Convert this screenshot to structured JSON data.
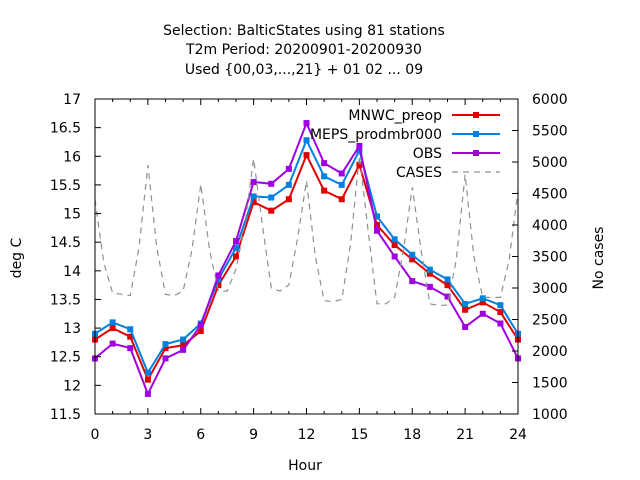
{
  "chart_data": {
    "type": "line",
    "title": [
      "Selection: BalticStates using    81 stations",
      "T2m   Period: 20200901-20200930",
      "Used {00,03,...,21} + 01 02 ... 09"
    ],
    "xlabel": "Hour",
    "ylabel": "deg C",
    "y2label": "No cases",
    "xlim": [
      0,
      24
    ],
    "ylim": [
      11.5,
      17
    ],
    "y2lim": [
      1000,
      6000
    ],
    "xticks": [
      "0",
      "3",
      "6",
      "9",
      "12",
      "15",
      "18",
      "21",
      "24"
    ],
    "yticks": [
      "11.5",
      "12",
      "12.5",
      "13",
      "13.5",
      "14",
      "14.5",
      "15",
      "15.5",
      "16",
      "16.5",
      "17"
    ],
    "y2ticks": [
      "1000",
      "1500",
      "2000",
      "2500",
      "3000",
      "3500",
      "4000",
      "4500",
      "5000",
      "5500",
      "6000"
    ],
    "grid": false,
    "legend_position": "top-right",
    "x": [
      0,
      1,
      2,
      3,
      4,
      5,
      6,
      7,
      8,
      9,
      10,
      11,
      12,
      13,
      14,
      15,
      16,
      17,
      18,
      19,
      20,
      21,
      22,
      23,
      24
    ],
    "series": [
      {
        "name": "MNWC_preop",
        "color": "#e00000",
        "axis": "left",
        "marker": "square",
        "values": [
          12.8,
          13.0,
          12.85,
          12.1,
          12.65,
          12.7,
          12.95,
          13.75,
          14.25,
          15.2,
          15.05,
          15.25,
          16.02,
          15.4,
          15.25,
          15.85,
          14.8,
          14.45,
          14.2,
          13.95,
          13.75,
          13.32,
          13.45,
          13.28,
          12.8
        ]
      },
      {
        "name": "MEPS_prodmbr000",
        "color": "#0080e0",
        "axis": "left",
        "marker": "square",
        "values": [
          12.9,
          13.1,
          12.98,
          12.22,
          12.72,
          12.8,
          13.08,
          13.85,
          14.4,
          15.3,
          15.28,
          15.5,
          16.28,
          15.65,
          15.5,
          16.1,
          14.95,
          14.55,
          14.28,
          14.02,
          13.85,
          13.42,
          13.52,
          13.4,
          12.9
        ]
      },
      {
        "name": "OBS",
        "color": "#a000e0",
        "axis": "left",
        "marker": "square",
        "values": [
          12.47,
          12.73,
          12.65,
          11.85,
          12.47,
          12.62,
          13.05,
          13.92,
          14.52,
          15.55,
          15.52,
          15.78,
          16.58,
          15.88,
          15.7,
          16.18,
          14.7,
          14.25,
          13.82,
          13.72,
          13.55,
          13.02,
          13.25,
          13.08,
          12.47
        ]
      },
      {
        "name": "CASES",
        "color": "#909090",
        "axis": "right",
        "dashed": true,
        "x": [
          0,
          0.5,
          1,
          1.5,
          2,
          2.5,
          3,
          3.5,
          4,
          4.5,
          5,
          5.5,
          6,
          6.5,
          7,
          7.5,
          8,
          8.5,
          9,
          9.5,
          10,
          10.5,
          11,
          11.5,
          12,
          12.5,
          13,
          13.5,
          14,
          14.5,
          15,
          15.5,
          16,
          16.5,
          17,
          17.5,
          18,
          18.5,
          19,
          19.5,
          20,
          20.5,
          21,
          21.5,
          22,
          22.5,
          23,
          23.5,
          24
        ],
        "values": [
          4400,
          3400,
          2920,
          2900,
          2880,
          3650,
          4950,
          3650,
          2900,
          2880,
          2950,
          3600,
          4650,
          3600,
          2950,
          2950,
          3300,
          4000,
          5050,
          4000,
          3000,
          2950,
          3050,
          3800,
          4700,
          3500,
          2800,
          2780,
          2820,
          3700,
          5100,
          3900,
          2750,
          2750,
          2850,
          3600,
          4600,
          3600,
          2750,
          2720,
          2730,
          3450,
          4800,
          3500,
          2850,
          2850,
          2850,
          3450,
          4550
        ]
      }
    ]
  }
}
